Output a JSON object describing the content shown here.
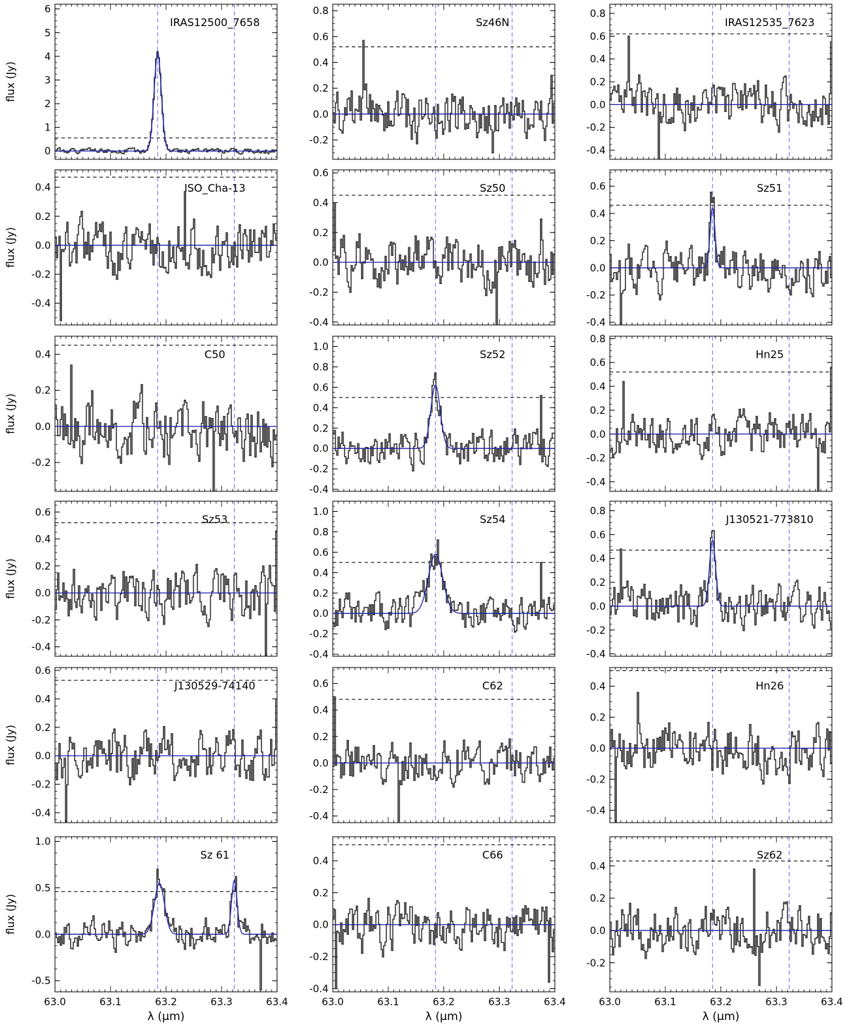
{
  "figure": {
    "grid_rows": 6,
    "grid_cols": 3,
    "y_axis_label": "flux (Jy)",
    "x_axis_label": "λ (μm)",
    "colors": {
      "spectrum": "#333333",
      "fit": "#2222aa",
      "line_marker": "#6f6fef",
      "threshold": "#000000"
    }
  },
  "chart_data": [
    {
      "type": "line",
      "target": "IRAS12500_7658",
      "xlim": [
        63.0,
        63.4
      ],
      "ylim": [
        -0.35,
        6.2
      ],
      "yticks": [
        0,
        1,
        2,
        3,
        4,
        5,
        6
      ],
      "threshold": 0.55,
      "lines": [
        63.185,
        63.323
      ],
      "gauss": [
        {
          "c": 63.185,
          "a": 4.15,
          "s": 0.0065
        }
      ],
      "noise": 0.09,
      "seed": 1,
      "peaks": [
        {
          "x": 63.185,
          "y": 4.2
        }
      ]
    },
    {
      "type": "line",
      "target": "Sz46N",
      "xlim": [
        63.0,
        63.4
      ],
      "ylim": [
        -0.35,
        0.85
      ],
      "yticks": [
        -0.2,
        0.0,
        0.2,
        0.4,
        0.6,
        0.8
      ],
      "threshold": 0.52,
      "lines": [
        63.185,
        63.323
      ],
      "gauss": [],
      "noise": 0.17,
      "seed": 2,
      "peaks": [
        {
          "x": 63.055,
          "y": 0.57
        },
        {
          "x": 63.288,
          "y": -0.3
        },
        {
          "x": 63.395,
          "y": 0.3
        }
      ]
    },
    {
      "type": "line",
      "target": "IRAS12535_7623",
      "xlim": [
        63.0,
        63.4
      ],
      "ylim": [
        -0.48,
        0.88
      ],
      "yticks": [
        -0.4,
        -0.2,
        0.0,
        0.2,
        0.4,
        0.6,
        0.8
      ],
      "threshold": 0.62,
      "lines": [
        63.185,
        63.323
      ],
      "gauss": [],
      "noise": 0.18,
      "seed": 3,
      "peaks": [
        {
          "x": 63.035,
          "y": 0.6
        },
        {
          "x": 63.088,
          "y": -0.48
        },
        {
          "x": 63.398,
          "y": 0.55
        }
      ]
    },
    {
      "type": "line",
      "target": "ISO_Cha-13",
      "xlim": [
        63.0,
        63.4
      ],
      "ylim": [
        -0.55,
        0.52
      ],
      "yticks": [
        -0.4,
        -0.2,
        0.0,
        0.2,
        0.4
      ],
      "threshold": 0.47,
      "lines": [
        63.185,
        63.323
      ],
      "gauss": [],
      "noise": 0.16,
      "seed": 4,
      "peaks": [
        {
          "x": 63.01,
          "y": -0.52
        },
        {
          "x": 63.235,
          "y": 0.37
        }
      ]
    },
    {
      "type": "line",
      "target": "Sz50",
      "xlim": [
        63.0,
        63.4
      ],
      "ylim": [
        -0.42,
        0.62
      ],
      "yticks": [
        -0.4,
        -0.2,
        0.0,
        0.2,
        0.4,
        0.6
      ],
      "threshold": 0.45,
      "lines": [
        63.185,
        63.323
      ],
      "gauss": [],
      "noise": 0.15,
      "seed": 5,
      "peaks": [
        {
          "x": 63.003,
          "y": 0.4
        },
        {
          "x": 63.295,
          "y": -0.42
        },
        {
          "x": 63.375,
          "y": 0.29
        }
      ]
    },
    {
      "type": "line",
      "target": "Sz51",
      "xlim": [
        63.0,
        63.4
      ],
      "ylim": [
        -0.42,
        0.72
      ],
      "yticks": [
        -0.4,
        -0.2,
        0.0,
        0.2,
        0.4,
        0.6
      ],
      "threshold": 0.46,
      "lines": [
        63.185,
        63.323
      ],
      "gauss": [
        {
          "c": 63.185,
          "a": 0.44,
          "s": 0.0045
        }
      ],
      "noise": 0.15,
      "seed": 6,
      "peaks": [
        {
          "x": 63.185,
          "y": 0.48
        },
        {
          "x": 63.02,
          "y": -0.42
        }
      ]
    },
    {
      "type": "line",
      "target": "C50",
      "xlim": [
        63.0,
        63.4
      ],
      "ylim": [
        -0.36,
        0.5
      ],
      "yticks": [
        -0.2,
        0.0,
        0.2,
        0.4
      ],
      "threshold": 0.45,
      "lines": [
        63.185,
        63.323
      ],
      "gauss": [],
      "noise": 0.15,
      "seed": 7,
      "peaks": [
        {
          "x": 63.03,
          "y": 0.34
        },
        {
          "x": 63.285,
          "y": -0.36
        }
      ]
    },
    {
      "type": "line",
      "target": "Sz52",
      "xlim": [
        63.0,
        63.4
      ],
      "ylim": [
        -0.42,
        1.1
      ],
      "yticks": [
        -0.4,
        -0.2,
        0.0,
        0.2,
        0.4,
        0.6,
        0.8,
        1.0
      ],
      "threshold": 0.5,
      "lines": [
        63.185,
        63.323
      ],
      "gauss": [
        {
          "c": 63.185,
          "a": 0.62,
          "s": 0.0085
        }
      ],
      "noise": 0.15,
      "seed": 8,
      "peaks": [
        {
          "x": 63.185,
          "y": 0.74
        },
        {
          "x": 63.375,
          "y": 0.52
        }
      ]
    },
    {
      "type": "line",
      "target": "Hn25",
      "xlim": [
        63.0,
        63.4
      ],
      "ylim": [
        -0.48,
        0.82
      ],
      "yticks": [
        -0.4,
        -0.2,
        0.0,
        0.2,
        0.4,
        0.6,
        0.8
      ],
      "threshold": 0.52,
      "lines": [
        63.185,
        63.323
      ],
      "gauss": [],
      "noise": 0.15,
      "seed": 9,
      "peaks": [
        {
          "x": 63.025,
          "y": 0.44
        },
        {
          "x": 63.398,
          "y": 0.56
        },
        {
          "x": 63.375,
          "y": -0.48
        }
      ]
    },
    {
      "type": "line",
      "target": "Sz53",
      "xlim": [
        63.0,
        63.4
      ],
      "ylim": [
        -0.47,
        0.68
      ],
      "yticks": [
        -0.4,
        -0.2,
        0.0,
        0.2,
        0.4,
        0.6
      ],
      "threshold": 0.52,
      "lines": [
        63.185,
        63.323
      ],
      "gauss": [],
      "noise": 0.16,
      "seed": 10,
      "peaks": [
        {
          "x": 63.38,
          "y": -0.47
        },
        {
          "x": 63.398,
          "y": 0.46
        }
      ]
    },
    {
      "type": "line",
      "target": "Sz54",
      "xlim": [
        63.0,
        63.4
      ],
      "ylim": [
        -0.42,
        1.1
      ],
      "yticks": [
        -0.4,
        -0.2,
        0.0,
        0.2,
        0.4,
        0.6,
        0.8,
        1.0
      ],
      "threshold": 0.5,
      "lines": [
        63.185,
        63.323
      ],
      "gauss": [
        {
          "c": 63.185,
          "a": 0.58,
          "s": 0.013
        }
      ],
      "noise": 0.14,
      "seed": 11,
      "peaks": [
        {
          "x": 63.19,
          "y": 0.72
        },
        {
          "x": 63.375,
          "y": 0.5
        }
      ]
    },
    {
      "type": "line",
      "target": "J130521-773810",
      "xlim": [
        63.0,
        63.4
      ],
      "ylim": [
        -0.42,
        0.88
      ],
      "yticks": [
        -0.4,
        -0.2,
        0.0,
        0.2,
        0.4,
        0.6,
        0.8
      ],
      "threshold": 0.47,
      "lines": [
        63.185,
        63.323
      ],
      "gauss": [
        {
          "c": 63.185,
          "a": 0.55,
          "s": 0.0055
        }
      ],
      "noise": 0.15,
      "seed": 12,
      "peaks": [
        {
          "x": 63.185,
          "y": 0.63
        },
        {
          "x": 63.02,
          "y": 0.48
        }
      ]
    },
    {
      "type": "line",
      "target": "J130529-74140",
      "xlim": [
        63.0,
        63.4
      ],
      "ylim": [
        -0.47,
        0.62
      ],
      "yticks": [
        -0.4,
        -0.2,
        0.0,
        0.2,
        0.4,
        0.6
      ],
      "threshold": 0.53,
      "lines": [
        63.185,
        63.323
      ],
      "gauss": [],
      "noise": 0.16,
      "seed": 13,
      "peaks": [
        {
          "x": 63.02,
          "y": -0.47
        },
        {
          "x": 63.398,
          "y": 0.4
        }
      ]
    },
    {
      "type": "line",
      "target": "C62",
      "xlim": [
        63.0,
        63.4
      ],
      "ylim": [
        -0.45,
        0.72
      ],
      "yticks": [
        -0.4,
        -0.2,
        0.0,
        0.2,
        0.4,
        0.6
      ],
      "threshold": 0.48,
      "lines": [
        63.185,
        63.323
      ],
      "gauss": [],
      "noise": 0.14,
      "seed": 14,
      "peaks": [
        {
          "x": 63.003,
          "y": 0.5
        },
        {
          "x": 63.12,
          "y": -0.45
        }
      ]
    },
    {
      "type": "line",
      "target": "Hn26",
      "xlim": [
        63.0,
        63.4
      ],
      "ylim": [
        -0.48,
        0.52
      ],
      "yticks": [
        -0.4,
        -0.2,
        0.0,
        0.2,
        0.4
      ],
      "threshold": 0.5,
      "lines": [
        63.185,
        63.323
      ],
      "gauss": [],
      "noise": 0.15,
      "seed": 15,
      "peaks": [
        {
          "x": 63.01,
          "y": -0.48
        },
        {
          "x": 63.05,
          "y": 0.36
        }
      ]
    },
    {
      "type": "line",
      "target": "Sz 61",
      "xlim": [
        63.0,
        63.4
      ],
      "ylim": [
        -0.62,
        1.05
      ],
      "yticks": [
        -0.5,
        0.0,
        0.5,
        1.0
      ],
      "threshold": 0.46,
      "lines": [
        63.185,
        63.323
      ],
      "gauss": [
        {
          "c": 63.188,
          "a": 0.55,
          "s": 0.009
        },
        {
          "c": 63.323,
          "a": 0.58,
          "s": 0.005
        }
      ],
      "noise": 0.14,
      "seed": 16,
      "peaks": [
        {
          "x": 63.185,
          "y": 0.7
        },
        {
          "x": 63.325,
          "y": 0.62
        },
        {
          "x": 63.37,
          "y": -0.6
        }
      ]
    },
    {
      "type": "line",
      "target": "C66",
      "xlim": [
        63.0,
        63.4
      ],
      "ylim": [
        -0.42,
        0.55
      ],
      "yticks": [
        -0.4,
        -0.2,
        0.0,
        0.2,
        0.4
      ],
      "threshold": 0.5,
      "lines": [
        63.185,
        63.323
      ],
      "gauss": [],
      "noise": 0.14,
      "seed": 17,
      "peaks": [
        {
          "x": 63.005,
          "y": -0.4
        },
        {
          "x": 63.39,
          "y": -0.36
        }
      ]
    },
    {
      "type": "line",
      "target": "Sz62",
      "xlim": [
        63.0,
        63.4
      ],
      "ylim": [
        -0.38,
        0.58
      ],
      "yticks": [
        -0.2,
        0.0,
        0.2,
        0.4
      ],
      "threshold": 0.43,
      "lines": [
        63.185,
        63.323
      ],
      "gauss": [],
      "noise": 0.13,
      "seed": 18,
      "peaks": [
        {
          "x": 63.26,
          "y": 0.38
        },
        {
          "x": 63.27,
          "y": -0.34
        }
      ]
    }
  ],
  "x_ticks": [
    63.0,
    63.1,
    63.2,
    63.3,
    63.4
  ],
  "x_tick_labels": [
    "63.0",
    "63.1",
    "63.2",
    "63.3",
    "63.4"
  ]
}
